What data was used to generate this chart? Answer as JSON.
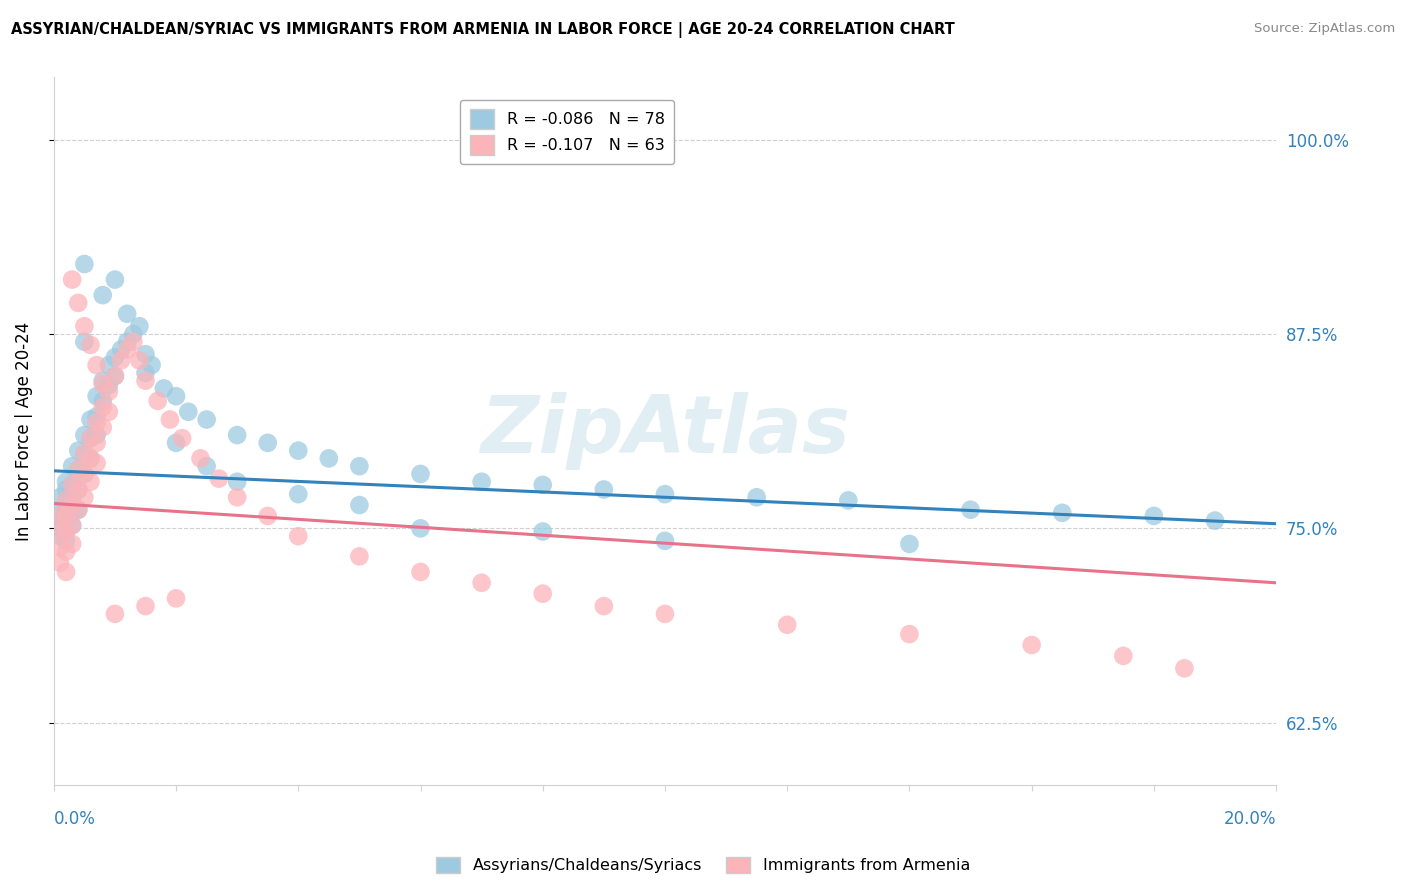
{
  "title": "ASSYRIAN/CHALDEAN/SYRIAC VS IMMIGRANTS FROM ARMENIA IN LABOR FORCE | AGE 20-24 CORRELATION CHART",
  "source": "Source: ZipAtlas.com",
  "ylabel": "In Labor Force | Age 20-24",
  "xlim": [
    0.0,
    0.2
  ],
  "ylim": [
    0.585,
    1.04
  ],
  "yticks": [
    0.625,
    0.75,
    0.875,
    1.0
  ],
  "ytick_labels": [
    "62.5%",
    "75.0%",
    "87.5%",
    "100.0%"
  ],
  "blue_R": "-0.086",
  "blue_N": "78",
  "pink_R": "-0.107",
  "pink_N": "63",
  "blue_label": "Assyrians/Chaldeans/Syriacs",
  "pink_label": "Immigrants from Armenia",
  "blue_color": "#9ecae1",
  "pink_color": "#fbb4b9",
  "blue_line_color": "#3182bd",
  "pink_line_color": "#e8728a",
  "watermark": "ZipAtlas",
  "blue_trend_x0": 0.0,
  "blue_trend_y0": 0.787,
  "blue_trend_x1": 0.2,
  "blue_trend_y1": 0.753,
  "pink_trend_x0": 0.0,
  "pink_trend_y0": 0.766,
  "pink_trend_x1": 0.2,
  "pink_trend_y1": 0.715,
  "blue_scatter_x": [
    0.001,
    0.001,
    0.001,
    0.001,
    0.001,
    0.002,
    0.002,
    0.002,
    0.002,
    0.002,
    0.002,
    0.002,
    0.003,
    0.003,
    0.003,
    0.003,
    0.003,
    0.003,
    0.004,
    0.004,
    0.004,
    0.004,
    0.005,
    0.005,
    0.005,
    0.005,
    0.006,
    0.006,
    0.006,
    0.007,
    0.007,
    0.007,
    0.008,
    0.008,
    0.009,
    0.009,
    0.01,
    0.01,
    0.011,
    0.012,
    0.013,
    0.014,
    0.015,
    0.016,
    0.018,
    0.02,
    0.022,
    0.025,
    0.03,
    0.035,
    0.04,
    0.045,
    0.05,
    0.06,
    0.07,
    0.08,
    0.09,
    0.1,
    0.115,
    0.13,
    0.15,
    0.165,
    0.18,
    0.19,
    0.005,
    0.008,
    0.01,
    0.012,
    0.015,
    0.02,
    0.025,
    0.03,
    0.04,
    0.05,
    0.06,
    0.08,
    0.1,
    0.14
  ],
  "blue_scatter_y": [
    0.75,
    0.762,
    0.77,
    0.758,
    0.745,
    0.768,
    0.775,
    0.76,
    0.748,
    0.78,
    0.755,
    0.742,
    0.79,
    0.778,
    0.765,
    0.752,
    0.77,
    0.76,
    0.8,
    0.788,
    0.775,
    0.762,
    0.81,
    0.798,
    0.785,
    0.87,
    0.82,
    0.808,
    0.795,
    0.835,
    0.822,
    0.81,
    0.845,
    0.832,
    0.855,
    0.842,
    0.86,
    0.848,
    0.865,
    0.87,
    0.875,
    0.88,
    0.862,
    0.855,
    0.84,
    0.835,
    0.825,
    0.82,
    0.81,
    0.805,
    0.8,
    0.795,
    0.79,
    0.785,
    0.78,
    0.778,
    0.775,
    0.772,
    0.77,
    0.768,
    0.762,
    0.76,
    0.758,
    0.755,
    0.92,
    0.9,
    0.91,
    0.888,
    0.85,
    0.805,
    0.79,
    0.78,
    0.772,
    0.765,
    0.75,
    0.748,
    0.742,
    0.74
  ],
  "pink_scatter_x": [
    0.001,
    0.001,
    0.001,
    0.001,
    0.002,
    0.002,
    0.002,
    0.002,
    0.002,
    0.003,
    0.003,
    0.003,
    0.003,
    0.004,
    0.004,
    0.004,
    0.005,
    0.005,
    0.005,
    0.006,
    0.006,
    0.006,
    0.007,
    0.007,
    0.007,
    0.008,
    0.008,
    0.009,
    0.009,
    0.01,
    0.011,
    0.012,
    0.013,
    0.014,
    0.015,
    0.017,
    0.019,
    0.021,
    0.024,
    0.027,
    0.03,
    0.035,
    0.04,
    0.05,
    0.06,
    0.07,
    0.08,
    0.09,
    0.1,
    0.12,
    0.14,
    0.16,
    0.175,
    0.185,
    0.003,
    0.004,
    0.005,
    0.006,
    0.007,
    0.008,
    0.01,
    0.015,
    0.02
  ],
  "pink_scatter_y": [
    0.758,
    0.748,
    0.738,
    0.728,
    0.768,
    0.758,
    0.748,
    0.735,
    0.722,
    0.778,
    0.765,
    0.752,
    0.74,
    0.788,
    0.775,
    0.762,
    0.798,
    0.785,
    0.77,
    0.808,
    0.795,
    0.78,
    0.818,
    0.805,
    0.792,
    0.828,
    0.815,
    0.838,
    0.825,
    0.848,
    0.858,
    0.865,
    0.87,
    0.858,
    0.845,
    0.832,
    0.82,
    0.808,
    0.795,
    0.782,
    0.77,
    0.758,
    0.745,
    0.732,
    0.722,
    0.715,
    0.708,
    0.7,
    0.695,
    0.688,
    0.682,
    0.675,
    0.668,
    0.66,
    0.91,
    0.895,
    0.88,
    0.868,
    0.855,
    0.843,
    0.695,
    0.7,
    0.705
  ]
}
